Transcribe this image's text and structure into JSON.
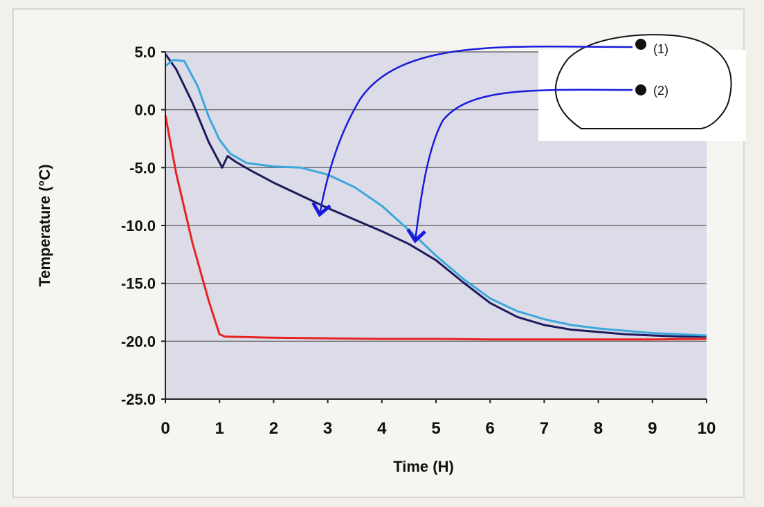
{
  "chart_data": {
    "type": "line",
    "xlabel": "Time (H)",
    "ylabel": "Temperature (°C)",
    "xlim": [
      0,
      10
    ],
    "ylim": [
      -25,
      5
    ],
    "x_ticks": [
      "0",
      "1",
      "2",
      "3",
      "4",
      "5",
      "6",
      "7",
      "8",
      "9",
      "10"
    ],
    "y_ticks": [
      "5.0",
      "0.0",
      "-5.0",
      "-10.0",
      "-15.0",
      "-20.0",
      "-25.0"
    ],
    "grid": "horizontal",
    "plot_background": "#dcdbe8",
    "series": [
      {
        "color": "#e8231f",
        "x": [
          0,
          0.2,
          0.5,
          0.8,
          1.0,
          1.1,
          2,
          3,
          4,
          5,
          6,
          7,
          8,
          9,
          10
        ],
        "y": [
          -0.5,
          -5.5,
          -11.5,
          -16.5,
          -19.4,
          -19.6,
          -19.7,
          -19.75,
          -19.8,
          -19.8,
          -19.85,
          -19.85,
          -19.85,
          -19.85,
          -19.8
        ]
      },
      {
        "color": "#1e1a5c",
        "x": [
          0,
          0.2,
          0.5,
          0.8,
          1.05,
          1.15,
          1.3,
          1.6,
          2,
          2.5,
          3,
          3.5,
          4,
          4.5,
          5,
          5.5,
          6,
          6.5,
          7,
          7.5,
          8,
          8.5,
          9,
          9.5,
          10
        ],
        "y": [
          4.8,
          3.5,
          0.6,
          -2.8,
          -5.0,
          -4.0,
          -4.5,
          -5.3,
          -6.3,
          -7.4,
          -8.5,
          -9.5,
          -10.5,
          -11.6,
          -13.0,
          -14.9,
          -16.7,
          -17.9,
          -18.6,
          -19.0,
          -19.2,
          -19.4,
          -19.5,
          -19.6,
          -19.6
        ]
      },
      {
        "color": "#3aa8dc",
        "x": [
          0,
          0.15,
          0.35,
          0.6,
          0.8,
          1.0,
          1.2,
          1.5,
          2,
          2.5,
          3,
          3.5,
          4,
          4.5,
          5,
          5.5,
          6,
          6.5,
          7,
          7.5,
          8,
          8.5,
          9,
          9.5,
          10
        ],
        "y": [
          3.8,
          4.3,
          4.2,
          2.0,
          -0.6,
          -2.6,
          -3.8,
          -4.6,
          -4.9,
          -5.0,
          -5.6,
          -6.7,
          -8.3,
          -10.4,
          -12.6,
          -14.6,
          -16.3,
          -17.4,
          -18.1,
          -18.6,
          -18.9,
          -19.1,
          -19.3,
          -19.4,
          -19.5
        ]
      }
    ],
    "inset_labels": [
      "(1)",
      "(2)"
    ]
  }
}
